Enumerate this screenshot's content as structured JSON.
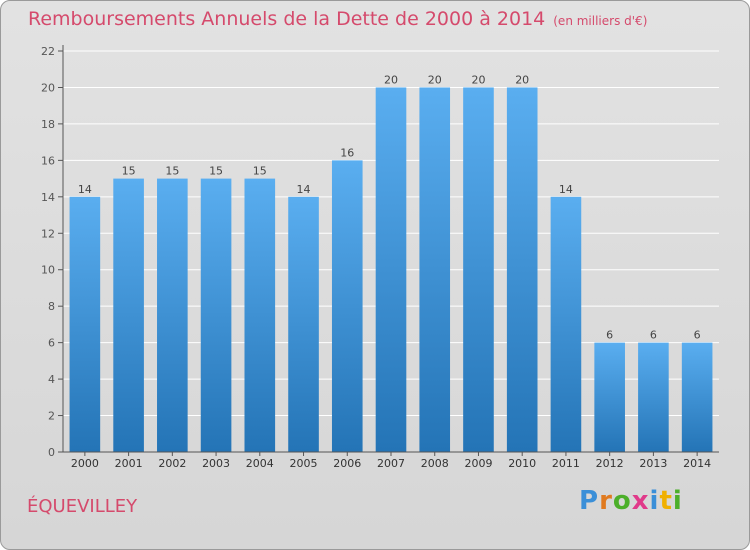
{
  "title": "Remboursements Annuels de la Dette de 2000 à 2014",
  "unit": "(en milliers d'€)",
  "commune": "ÉQUEVILLEY",
  "logo": {
    "text": "Proxiti",
    "colors": [
      "#3a8fd8",
      "#e07a1f",
      "#4caf2a",
      "#e03a8a",
      "#3a8fd8",
      "#f0b000",
      "#4caf2a"
    ]
  },
  "colors": {
    "bar_light": "#5aaef0",
    "bar_dark": "#2474b6",
    "title": "#d54a6c"
  },
  "chart_data": {
    "type": "bar",
    "categories": [
      "2000",
      "2001",
      "2002",
      "2003",
      "2004",
      "2005",
      "2006",
      "2007",
      "2008",
      "2009",
      "2010",
      "2011",
      "2012",
      "2013",
      "2014"
    ],
    "values": [
      14,
      15,
      15,
      15,
      15,
      14,
      16,
      20,
      20,
      20,
      20,
      14,
      6,
      6,
      6
    ],
    "ylim": [
      0,
      22
    ],
    "yticks": [
      0,
      2,
      4,
      6,
      8,
      10,
      12,
      14,
      16,
      18,
      20,
      22
    ],
    "grid": true
  }
}
